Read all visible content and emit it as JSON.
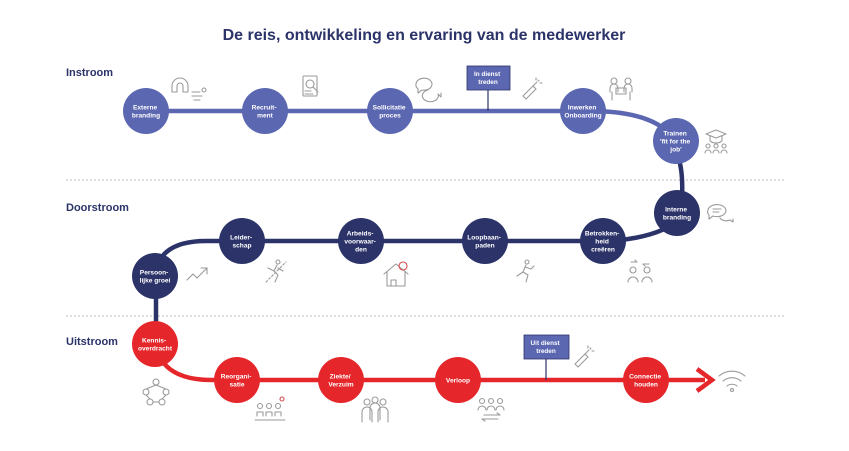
{
  "title": "De reis, ontwikkeling en ervaring van de medewerker",
  "colors": {
    "instroom": "#5b67b1",
    "doorstroom": "#2b3369",
    "uitstroom": "#e5262a",
    "flag_instroom": "#5b67b1",
    "flag_uitstroom": "#5b67b1",
    "icon": "#9a9a9a"
  },
  "sections": [
    {
      "label": "Instroom"
    },
    {
      "label": "Doorstroom"
    },
    {
      "label": "Uitstroom"
    }
  ],
  "nodes": [
    {
      "lines": [
        "Externe",
        "branding"
      ],
      "phase": "instroom",
      "icon": "magnet-icon"
    },
    {
      "lines": [
        "Recruit-",
        "ment"
      ],
      "phase": "instroom",
      "icon": "resume-search-icon"
    },
    {
      "lines": [
        "Sollicitatie",
        "proces"
      ],
      "phase": "instroom",
      "icon": "chat-bubbles-icon"
    },
    {
      "lines": [
        "Inwerken",
        "Onboarding"
      ],
      "phase": "instroom",
      "icon": "team-meeting-icon"
    },
    {
      "lines": [
        "Trainen",
        "'fit for the",
        "job'"
      ],
      "phase": "instroom",
      "icon": "training-icon"
    },
    {
      "lines": [
        "Interne",
        "branding"
      ],
      "phase": "doorstroom",
      "icon": "speech-bubble-icon"
    },
    {
      "lines": [
        "Betrokken-",
        "heid",
        "creëren"
      ],
      "phase": "doorstroom",
      "icon": "people-exchange-icon"
    },
    {
      "lines": [
        "Loopbaan-",
        "paden"
      ],
      "phase": "doorstroom",
      "icon": "running-person-icon"
    },
    {
      "lines": [
        "Arbeids-",
        "voorwaar-",
        "den"
      ],
      "phase": "doorstroom",
      "icon": "house-euro-icon"
    },
    {
      "lines": [
        "Leider-",
        "schap"
      ],
      "phase": "doorstroom",
      "icon": "climbing-person-icon"
    },
    {
      "lines": [
        "Persoon-",
        "lijke groei"
      ],
      "phase": "doorstroom",
      "icon": "growth-chart-icon"
    },
    {
      "lines": [
        "Kennis-",
        "overdracht"
      ],
      "phase": "uitstroom",
      "icon": "knowledge-network-icon"
    },
    {
      "lines": [
        "Reorgani-",
        "satie"
      ],
      "phase": "uitstroom",
      "icon": "reorganisation-icon"
    },
    {
      "lines": [
        "Ziekte/",
        "Verzuim"
      ],
      "phase": "uitstroom",
      "icon": "people-group-icon"
    },
    {
      "lines": [
        "Verloop"
      ],
      "phase": "uitstroom",
      "icon": "people-transfer-icon"
    },
    {
      "lines": [
        "Connectie",
        "houden"
      ],
      "phase": "uitstroom",
      "icon": "wifi-icon"
    }
  ],
  "flags": [
    {
      "lines": [
        "In dienst",
        "treden"
      ],
      "icon": "champagne-icon"
    },
    {
      "lines": [
        "Uit dienst",
        "treden"
      ],
      "icon": "champagne-icon"
    }
  ]
}
